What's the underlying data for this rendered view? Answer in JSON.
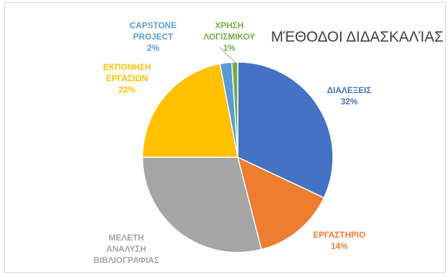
{
  "chart_data": {
    "type": "pie",
    "title": "ΜΈΘΟΔΟΙ ΔΙΔΑΣΚΑΛΊΑΣ",
    "slices": [
      {
        "label": [
          "ΔΙΑΛΕΞΕΙΣ"
        ],
        "value": 32,
        "value_label": "32%",
        "color": "#4472c4"
      },
      {
        "label": [
          "ΕΡΓΑΣΤΗΡΙΟ"
        ],
        "value": 14,
        "value_label": "14%",
        "color": "#ed7d31"
      },
      {
        "label": [
          "ΜΕΛΕΤΗ",
          "ΑΝΑΛΥΣΗ",
          "ΒΙΒΛΙΟΓΡΑΦΙΑΣ"
        ],
        "value": 29,
        "value_label": "",
        "color": "#a5a5a5"
      },
      {
        "label": [
          "ΕΚΠΟΝΗΣΗ",
          "ΕΡΓΑΣΙΩΝ"
        ],
        "value": 22,
        "value_label": "22%",
        "color": "#ffc000"
      },
      {
        "label": [
          "CAPSTONE",
          "PROJECT"
        ],
        "value": 2,
        "value_label": "2%",
        "color": "#5b9bd5"
      },
      {
        "label": [
          "ΧΡΗΣΗ",
          "ΛΟΓΙΣΜΙΚΟΥ"
        ],
        "value": 1,
        "value_label": "1%",
        "color": "#70ad47"
      }
    ]
  }
}
